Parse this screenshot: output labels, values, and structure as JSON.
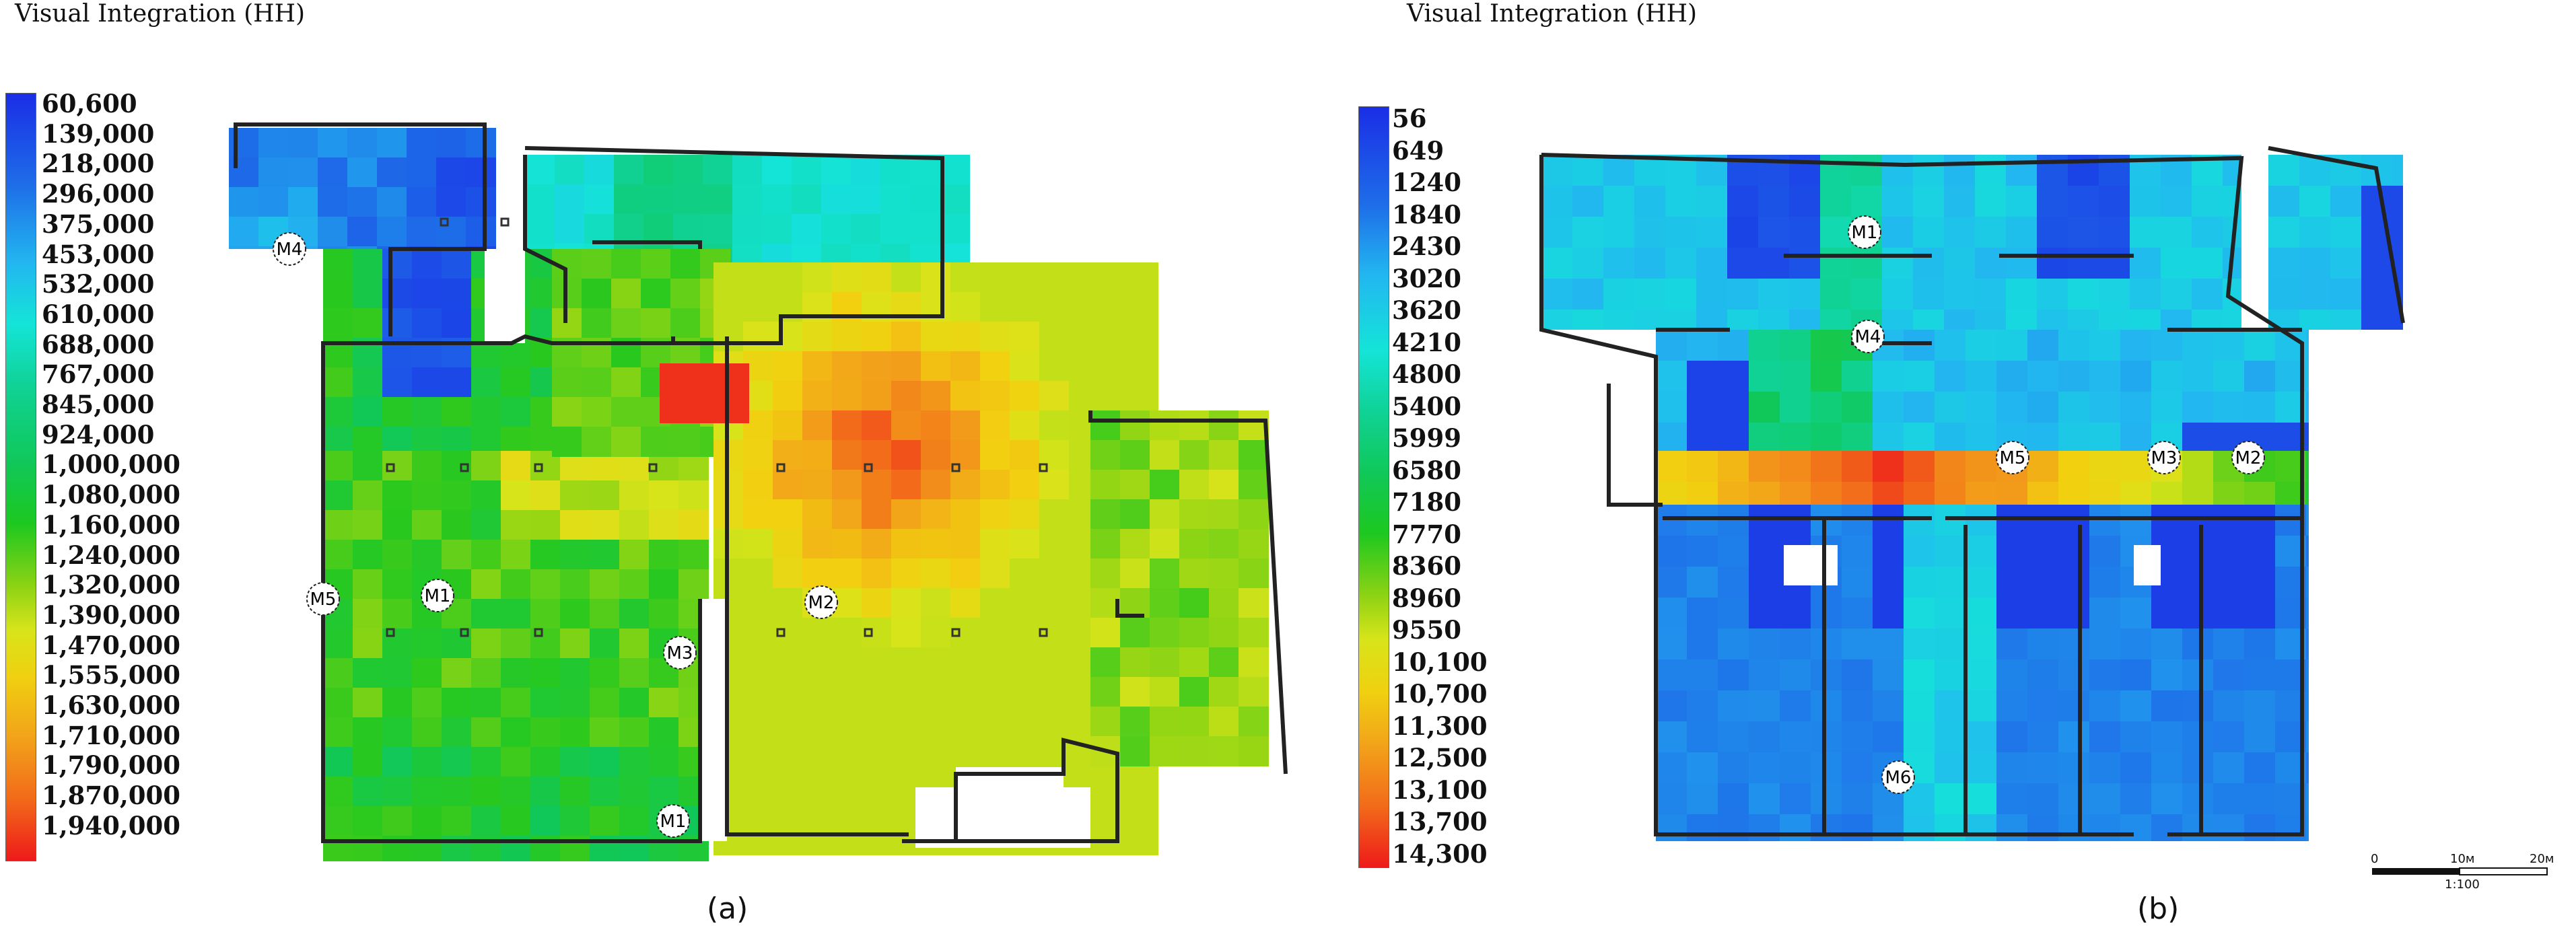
{
  "panels": [
    {
      "id": "a",
      "title": "Visual Integration (HH)",
      "legend": [
        "60,600",
        "139,000",
        "218,000",
        "296,000",
        "375,000",
        "453,000",
        "532,000",
        "610,000",
        "688,000",
        "767,000",
        "845,000",
        "924,000",
        "1,000,000",
        "1,080,000",
        "1,160,000",
        "1,240,000",
        "1,320,000",
        "1,390,000",
        "1,470,000",
        "1,555,000",
        "1,630,000",
        "1,710,000",
        "1,790,000",
        "1,870,000",
        "1,940,000"
      ],
      "markers": [
        "M4",
        "M5",
        "M1",
        "M3",
        "M2",
        "M1"
      ],
      "label": "(a)"
    },
    {
      "id": "b",
      "title": "Visual Integration (HH)",
      "legend": [
        "56",
        "649",
        "1240",
        "1840",
        "2430",
        "3020",
        "3620",
        "4210",
        "4800",
        "5400",
        "5999",
        "6580",
        "7180",
        "7770",
        "8360",
        "8960",
        "9550",
        "10,100",
        "10,700",
        "11,300",
        "12,500",
        "13,100",
        "13,700",
        "14,300"
      ],
      "markers": [
        "M1",
        "M4",
        "M5",
        "M3",
        "M2",
        "M6"
      ],
      "label": "(b)"
    }
  ],
  "scalebar": {
    "ticks": [
      "0",
      "10м",
      "20м"
    ],
    "ratio": "1:100"
  },
  "colors": {
    "low": "#1a35e0",
    "mid": "#12c847",
    "high": "#ee1a1a"
  }
}
